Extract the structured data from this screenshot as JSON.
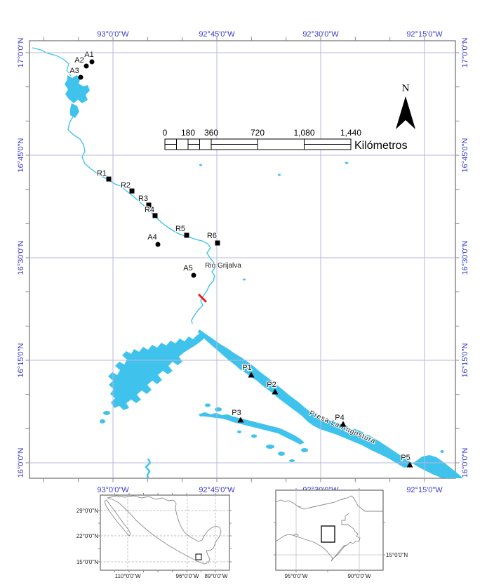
{
  "colors": {
    "water": "#3fc3ec",
    "grid": "#b7b7de",
    "axis_text": "#3a3ac8",
    "marker": "#000000",
    "red_mark": "#f01818"
  },
  "axes": {
    "top": [
      "93°0'0\"W",
      "92°45'0\"W",
      "92°30'0\"W",
      "92°15'0\"W"
    ],
    "bottom": [
      "93°0'0\"W",
      "92°45'0\"W",
      "92°30'0\"W",
      "92°15'0\"W"
    ],
    "left": [
      "17°0'0\"N",
      "16°45'0\"N",
      "16°30'0\"N",
      "16°15'0\"N",
      "16°0'0\"N"
    ],
    "right": [
      "17°0'0\"N",
      "16°45'0\"N",
      "16°30'0\"N",
      "16°15'0\"N",
      "16°0'0\"N"
    ]
  },
  "scalebar": {
    "ticks": [
      "0",
      "180",
      "360",
      "720",
      "1,080",
      "1,440"
    ],
    "unit": "Kilómetros"
  },
  "north_arrow": {
    "label": "N"
  },
  "sites": {
    "a": [
      {
        "id": "A1"
      },
      {
        "id": "A2"
      },
      {
        "id": "A3"
      },
      {
        "id": "A4"
      },
      {
        "id": "A5"
      }
    ],
    "r": [
      {
        "id": "R1"
      },
      {
        "id": "R2"
      },
      {
        "id": "R3"
      },
      {
        "id": "R4"
      },
      {
        "id": "R5"
      },
      {
        "id": "R6"
      }
    ],
    "p": [
      {
        "id": "P1"
      },
      {
        "id": "P2"
      },
      {
        "id": "P3"
      },
      {
        "id": "P4"
      },
      {
        "id": "P5"
      }
    ]
  },
  "features": {
    "river_label": "Rio Grijalva",
    "reservoir_label": "Presa La Angostura"
  },
  "insets": {
    "mexico": {
      "lat_labels": [
        "29°0'0\"N",
        "22°0'0\"N",
        "15°0'0\"N"
      ],
      "lon_labels": [
        "110°0'0\"W",
        "96°0'0\"W",
        "89°0'0\"W"
      ]
    },
    "region": {
      "lat_label": "15°0'0\"N",
      "lon_labels": [
        "95°0'0\"W",
        "90°0'0\"W"
      ]
    }
  }
}
